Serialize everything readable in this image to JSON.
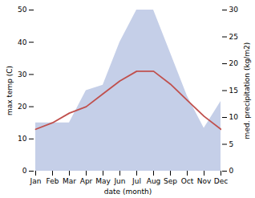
{
  "chart_data": {
    "type": "line",
    "xlabel": "date (month)",
    "ylabel": "max temp (C)",
    "y2label": "med. precipitation (kg/m2)",
    "categories": [
      "Jan",
      "Feb",
      "Mar",
      "Apr",
      "May",
      "Jun",
      "Jul",
      "Aug",
      "Sep",
      "Oct",
      "Nov",
      "Dec"
    ],
    "series": [
      {
        "type": "area",
        "axis": "y2",
        "color": "#c5cfe8",
        "values": [
          9,
          9,
          9,
          15,
          16,
          24,
          30,
          30,
          22,
          14,
          8,
          13
        ]
      },
      {
        "type": "line",
        "color": "#c0504d",
        "values": [
          13,
          15,
          18,
          20,
          24,
          28,
          31,
          31,
          27,
          22,
          17,
          13
        ]
      }
    ],
    "ylim": [
      0,
      50
    ],
    "yticks": [
      0,
      10,
      20,
      30,
      40,
      50
    ],
    "y2lim": [
      0,
      30
    ],
    "y2ticks": [
      0,
      5,
      10,
      15,
      20,
      25,
      30
    ],
    "grid": false
  }
}
